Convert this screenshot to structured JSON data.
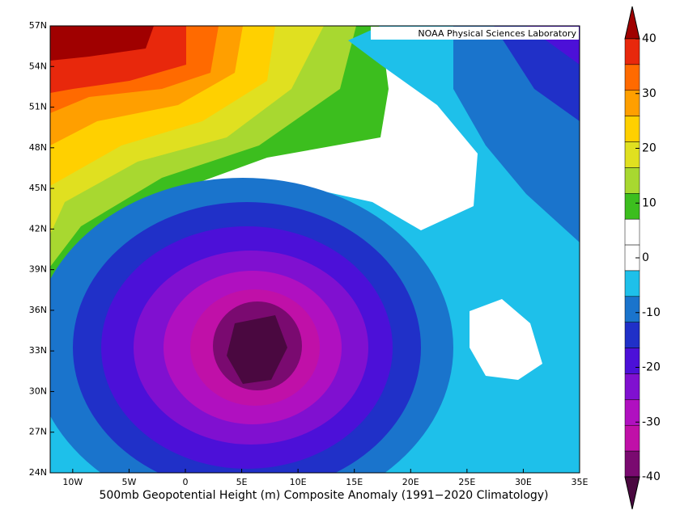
{
  "map": {
    "credit": "NOAA Physical Sciences Laboratory",
    "title": "500mb Geopotential Height (m) Composite Anomaly (1991−2020 Climatology)",
    "lat_labels": [
      "57N",
      "54N",
      "51N",
      "48N",
      "45N",
      "42N",
      "39N",
      "36N",
      "33N",
      "30N",
      "27N",
      "24N"
    ],
    "lon_labels": [
      "10W",
      "5W",
      "0",
      "5E",
      "10E",
      "15E",
      "20E",
      "25E",
      "30E",
      "35E"
    ]
  },
  "colorbar": {
    "ticks": [
      40,
      30,
      20,
      10,
      0,
      -10,
      -20,
      -30,
      -40
    ],
    "colors": [
      "#a00000",
      "#e8280c",
      "#ff6a00",
      "#ff9f00",
      "#ffd000",
      "#e0e020",
      "#a8d830",
      "#3cbe1e",
      "#ffffff",
      "#ffffff",
      "#1ec0ea",
      "#1a74cc",
      "#2030c8",
      "#4c10d8",
      "#8010d0",
      "#b010c0",
      "#c010a8",
      "#7a0a70",
      "#4a0840"
    ]
  }
}
